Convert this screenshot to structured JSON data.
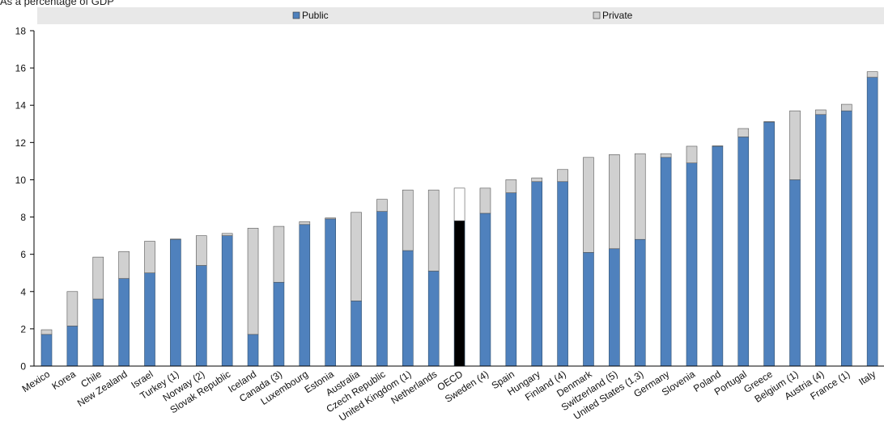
{
  "title": "As a percentage of GDP",
  "chart_data": {
    "type": "bar",
    "stacked": true,
    "categories": [
      "Mexico",
      "Korea",
      "Chile",
      "New Zealand",
      "Israel",
      "Turkey (1)",
      "Norway  (2)",
      "Slovak Republic",
      "Iceland",
      "Canada (3)",
      "Luxembourg",
      "Estonia",
      "Australia",
      "Czech Republic",
      "United Kingdom (1)",
      "Netherlands",
      "OECD",
      "Sweden (4)",
      "Spain",
      "Hungary",
      "Finland (4)",
      "Denmark",
      "Switzerland (5)",
      "United States (1,3)",
      "Germany",
      "Slovenia",
      "Poland",
      "Portugal",
      "Greece",
      "Belgium (1)",
      "Austria (4)",
      "France (1)",
      "Italy"
    ],
    "series": [
      {
        "name": "Public",
        "color": "#4f81bd",
        "values": [
          1.7,
          2.15,
          3.6,
          4.7,
          5.0,
          6.8,
          5.4,
          7.0,
          1.7,
          4.5,
          7.6,
          7.9,
          3.5,
          8.3,
          6.2,
          5.1,
          7.8,
          8.2,
          9.3,
          9.9,
          9.9,
          6.1,
          6.3,
          6.8,
          11.2,
          10.9,
          11.8,
          12.3,
          13.1,
          10.0,
          13.5,
          13.7,
          15.5
        ]
      },
      {
        "name": "Private",
        "color": "#d0d0d0",
        "values": [
          0.25,
          1.85,
          2.25,
          1.45,
          1.7,
          0.02,
          1.6,
          0.12,
          5.7,
          3.0,
          0.15,
          0.05,
          4.75,
          0.65,
          3.25,
          4.35,
          1.75,
          1.35,
          0.7,
          0.2,
          0.65,
          5.1,
          5.05,
          4.6,
          0.2,
          0.9,
          0.02,
          0.45,
          0.02,
          3.7,
          0.25,
          0.35,
          0.3
        ]
      }
    ],
    "highlight": {
      "category": "OECD",
      "public_color": "#000000",
      "private_color": "#ffffff"
    },
    "ylim": [
      0,
      18
    ],
    "yticks": [
      0,
      2,
      4,
      6,
      8,
      10,
      12,
      14,
      16,
      18
    ],
    "legend_position": "top",
    "grid": false
  }
}
